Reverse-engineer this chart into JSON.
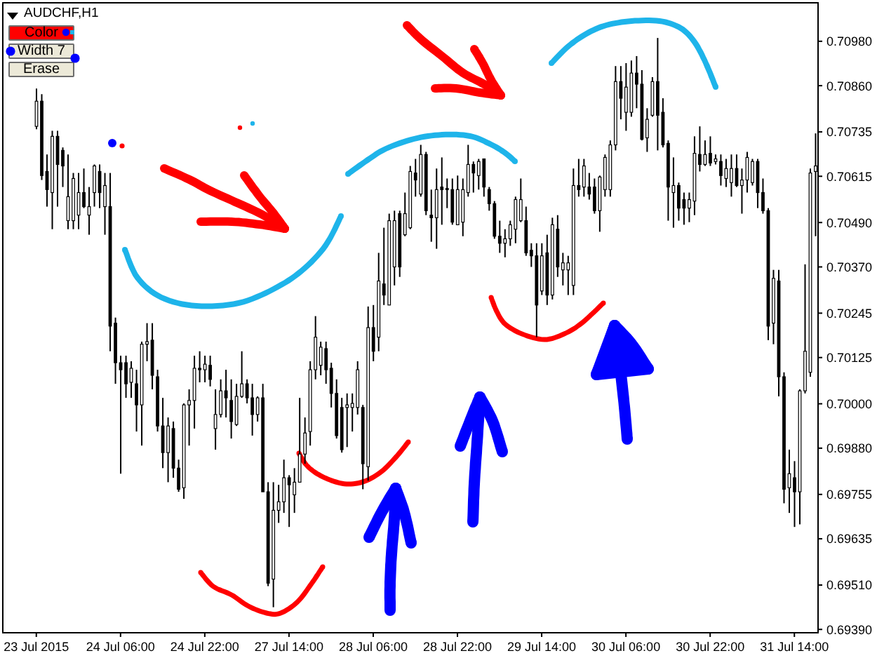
{
  "chart_data": {
    "type": "candlestick",
    "title": "AUDCHF,H1",
    "annotations": [
      "Color",
      "Width 7",
      "Erase"
    ],
    "color": "#000000",
    "categories": [
      "23 Jul 2015",
      null,
      null,
      null,
      null,
      null,
      null,
      null,
      null,
      null,
      null,
      null,
      null,
      null,
      null,
      null,
      "24 Jul 06:00",
      null,
      null,
      null,
      null,
      null,
      null,
      null,
      null,
      null,
      null,
      null,
      null,
      null,
      null,
      null,
      "24 Jul 22:00",
      null,
      null,
      null,
      null,
      null,
      null,
      null,
      null,
      null,
      null,
      null,
      null,
      null,
      null,
      null,
      "27 Jul 14:00",
      null,
      null,
      null,
      null,
      null,
      null,
      null,
      null,
      null,
      null,
      null,
      null,
      null,
      null,
      null,
      "28 Jul 06:00",
      null,
      null,
      null,
      null,
      null,
      null,
      null,
      null,
      null,
      null,
      null,
      null,
      null,
      null,
      null,
      "28 Jul 22:00",
      null,
      null,
      null,
      null,
      null,
      null,
      null,
      null,
      null,
      null,
      null,
      null,
      null,
      null,
      null,
      "29 Jul 14:00",
      null,
      null,
      null,
      null,
      null,
      null,
      null,
      null,
      null,
      null,
      null,
      null,
      null,
      null,
      null,
      "30 Jul 06:00",
      null,
      null,
      null,
      null,
      null,
      null,
      null,
      null,
      null,
      null,
      null,
      null,
      null,
      null,
      null,
      "30 Jul 22:00",
      null,
      null,
      null,
      null,
      null,
      null,
      null,
      null,
      null,
      null,
      null,
      null,
      null,
      null,
      null,
      "31 Jul 14:00",
      null,
      null,
      null,
      null
    ],
    "ohlc": [
      [
        0.7075,
        0.70852,
        0.70742,
        0.70818
      ],
      [
        0.70818,
        0.70837,
        0.70605,
        0.70617
      ],
      [
        0.70628,
        0.70674,
        0.70533,
        0.70579
      ],
      [
        0.70571,
        0.70738,
        0.70472,
        0.70723
      ],
      [
        0.70723,
        0.70738,
        0.70533,
        0.70647
      ],
      [
        0.70685,
        0.70693,
        0.70586,
        0.70643
      ],
      [
        0.70495,
        0.70674,
        0.70472,
        0.7056
      ],
      [
        0.70495,
        0.70624,
        0.70472,
        0.70609
      ],
      [
        0.7051,
        0.70624,
        0.70472,
        0.70571
      ],
      [
        0.70571,
        0.70636,
        0.70529,
        0.70533
      ],
      [
        0.7051,
        0.70586,
        0.70457,
        0.70533
      ],
      [
        0.70571,
        0.70647,
        0.70533,
        0.70643
      ],
      [
        0.70628,
        0.70647,
        0.70529,
        0.70571
      ],
      [
        0.70533,
        0.70624,
        0.70457,
        0.7059
      ],
      [
        0.70533,
        0.70624,
        0.70142,
        0.7021
      ],
      [
        0.70218,
        0.70233,
        0.70054,
        0.70111
      ],
      [
        0.70111,
        0.7013,
        0.69811,
        0.70092
      ],
      [
        0.70111,
        0.7013,
        0.70016,
        0.70054
      ],
      [
        0.70058,
        0.70115,
        0.70016,
        0.70096
      ],
      [
        0.70054,
        0.70092,
        0.69925,
        0.69997
      ],
      [
        0.69997,
        0.70168,
        0.69887,
        0.70161
      ],
      [
        0.70161,
        0.70218,
        0.70115,
        0.70168
      ],
      [
        0.70172,
        0.70218,
        0.70039,
        0.70077
      ],
      [
        0.70073,
        0.70092,
        0.69925,
        0.6994
      ],
      [
        0.6994,
        0.70016,
        0.69826,
        0.69868
      ],
      [
        0.69868,
        0.69963,
        0.69788,
        0.6994
      ],
      [
        0.69933,
        0.69952,
        0.698,
        0.69826
      ],
      [
        0.69826,
        0.69849,
        0.69762,
        0.69769
      ],
      [
        0.69773,
        0.70001,
        0.69743,
        0.69997
      ],
      [
        0.69997,
        0.70039,
        0.69887,
        0.70009
      ],
      [
        0.70009,
        0.7013,
        0.69933,
        0.70096
      ],
      [
        0.70096,
        0.70142,
        0.70058,
        0.70092
      ],
      [
        0.70092,
        0.7013,
        0.70058,
        0.70107
      ],
      [
        0.70104,
        0.7013,
        0.70047,
        0.70066
      ],
      [
        0.69933,
        0.70039,
        0.69876,
        0.69971
      ],
      [
        0.69971,
        0.70066,
        0.69963,
        0.70035
      ],
      [
        0.70035,
        0.70092,
        0.69963,
        0.70016
      ],
      [
        0.70009,
        0.70066,
        0.69906,
        0.69952
      ],
      [
        0.69944,
        0.70054,
        0.6994,
        0.7002
      ],
      [
        0.7002,
        0.70142,
        0.70016,
        0.70054
      ],
      [
        0.70054,
        0.70066,
        0.70001,
        0.70016
      ],
      [
        0.70016,
        0.70054,
        0.69914,
        0.69971
      ],
      [
        0.69971,
        0.7002,
        0.69952,
        0.70016
      ],
      [
        0.70016,
        0.70054,
        0.69762,
        0.69762
      ],
      [
        0.69762,
        0.69788,
        0.69507,
        0.69515
      ],
      [
        0.69526,
        0.69788,
        0.6945,
        0.69712
      ],
      [
        0.69712,
        0.69781,
        0.69678,
        0.69735
      ],
      [
        0.69735,
        0.69849,
        0.69705,
        0.698
      ],
      [
        0.698,
        0.69807,
        0.69667,
        0.69781
      ],
      [
        0.69754,
        0.69826,
        0.69705,
        0.69788
      ],
      [
        0.69788,
        0.70016,
        0.69788,
        0.69864
      ],
      [
        0.69864,
        0.69963,
        0.69838,
        0.69921
      ],
      [
        0.69925,
        0.70115,
        0.69887,
        0.70092
      ],
      [
        0.70092,
        0.70237,
        0.70066,
        0.7018
      ],
      [
        0.70104,
        0.70168,
        0.70077,
        0.70153
      ],
      [
        0.70149,
        0.70168,
        0.70054,
        0.70092
      ],
      [
        0.70096,
        0.70111,
        0.6999,
        0.70028
      ],
      [
        0.70028,
        0.70066,
        0.69906,
        0.69914
      ],
      [
        0.6999,
        0.70016,
        0.69868,
        0.69876
      ],
      [
        0.6999,
        0.70028,
        0.69883,
        0.69997
      ],
      [
        0.6999,
        0.70028,
        0.69925,
        0.70001
      ],
      [
        0.6999,
        0.70115,
        0.69971,
        0.70092
      ],
      [
        0.6999,
        0.69997,
        0.69769,
        0.69838
      ],
      [
        0.6983,
        0.70263,
        0.69792,
        0.70206
      ],
      [
        0.70206,
        0.70267,
        0.70115,
        0.70142
      ],
      [
        0.7018,
        0.70408,
        0.70142,
        0.70332
      ],
      [
        0.70324,
        0.70476,
        0.70267,
        0.70294
      ],
      [
        0.70267,
        0.70514,
        0.70267,
        0.70495
      ],
      [
        0.7037,
        0.70522,
        0.7032,
        0.70495
      ],
      [
        0.70514,
        0.70522,
        0.70343,
        0.7037
      ],
      [
        0.70457,
        0.70571,
        0.70453,
        0.70514
      ],
      [
        0.70476,
        0.70643,
        0.70472,
        0.70628
      ],
      [
        0.70624,
        0.70662,
        0.7056,
        0.70605
      ],
      [
        0.70567,
        0.707,
        0.7056,
        0.70674
      ],
      [
        0.70674,
        0.70681,
        0.7051,
        0.70522
      ],
      [
        0.7051,
        0.70579,
        0.70438,
        0.70503
      ],
      [
        0.70503,
        0.70636,
        0.70419,
        0.70579
      ],
      [
        0.70586,
        0.70666,
        0.70484,
        0.70579
      ],
      [
        0.70582,
        0.70609,
        0.70529,
        0.70579
      ],
      [
        0.70579,
        0.70609,
        0.70484,
        0.70491
      ],
      [
        0.70484,
        0.70617,
        0.70484,
        0.70579
      ],
      [
        0.70491,
        0.70609,
        0.70453,
        0.70579
      ],
      [
        0.70571,
        0.707,
        0.7056,
        0.70647
      ],
      [
        0.70647,
        0.70655,
        0.70571,
        0.70624
      ],
      [
        0.70617,
        0.70662,
        0.70579,
        0.70655
      ],
      [
        0.70662,
        0.70662,
        0.7056,
        0.70586
      ],
      [
        0.70579,
        0.70586,
        0.70522,
        0.70541
      ],
      [
        0.70541,
        0.70548,
        0.70446,
        0.70453
      ],
      [
        0.70453,
        0.70495,
        0.70408,
        0.70434
      ],
      [
        0.70434,
        0.70472,
        0.70396,
        0.70446
      ],
      [
        0.70446,
        0.70495,
        0.70427,
        0.70484
      ],
      [
        0.70472,
        0.7056,
        0.70434,
        0.70552
      ],
      [
        0.70495,
        0.70609,
        0.70491,
        0.70552
      ],
      [
        0.70495,
        0.70533,
        0.704,
        0.70408
      ],
      [
        0.70415,
        0.70434,
        0.7037,
        0.704
      ],
      [
        0.704,
        0.70434,
        0.7018,
        0.70267
      ],
      [
        0.70305,
        0.70434,
        0.70294,
        0.704
      ],
      [
        0.70408,
        0.70457,
        0.70267,
        0.70294
      ],
      [
        0.70294,
        0.70503,
        0.70282,
        0.70484
      ],
      [
        0.70472,
        0.7051,
        0.70343,
        0.7037
      ],
      [
        0.70362,
        0.70408,
        0.7032,
        0.70381
      ],
      [
        0.70362,
        0.704,
        0.70294,
        0.70381
      ],
      [
        0.7032,
        0.70636,
        0.70294,
        0.7059
      ],
      [
        0.7059,
        0.70662,
        0.7056,
        0.70579
      ],
      [
        0.70586,
        0.70662,
        0.7056,
        0.70643
      ],
      [
        0.70586,
        0.70624,
        0.70552,
        0.70567
      ],
      [
        0.70586,
        0.70609,
        0.70514,
        0.70522
      ],
      [
        0.70522,
        0.70617,
        0.70465,
        0.70613
      ],
      [
        0.70579,
        0.70674,
        0.7056,
        0.70666
      ],
      [
        0.70579,
        0.70712,
        0.7056,
        0.707
      ],
      [
        0.707,
        0.70913,
        0.70685,
        0.70871
      ],
      [
        0.70871,
        0.70913,
        0.70769,
        0.70826
      ],
      [
        0.70788,
        0.70921,
        0.70738,
        0.70856
      ],
      [
        0.70788,
        0.70928,
        0.70776,
        0.70894
      ],
      [
        0.70894,
        0.7094,
        0.70799,
        0.70864
      ],
      [
        0.70864,
        0.70902,
        0.70712,
        0.70715
      ],
      [
        0.70719,
        0.70799,
        0.70681,
        0.70769
      ],
      [
        0.7078,
        0.70883,
        0.70776,
        0.70871
      ],
      [
        0.70871,
        0.70989,
        0.70685,
        0.7078
      ],
      [
        0.70788,
        0.70826,
        0.70693,
        0.707
      ],
      [
        0.70704,
        0.70712,
        0.70495,
        0.70586
      ],
      [
        0.70571,
        0.70666,
        0.70476,
        0.7059
      ],
      [
        0.7059,
        0.70598,
        0.70495,
        0.70529
      ],
      [
        0.70552,
        0.70571,
        0.70484,
        0.70529
      ],
      [
        0.70529,
        0.70571,
        0.70491,
        0.70552
      ],
      [
        0.70548,
        0.70723,
        0.7051,
        0.70677
      ],
      [
        0.70674,
        0.7075,
        0.70628,
        0.70647
      ],
      [
        0.70647,
        0.70712,
        0.70643,
        0.70674
      ],
      [
        0.70677,
        0.70723,
        0.70643,
        0.70651
      ],
      [
        0.70655,
        0.70674,
        0.70647,
        0.70662
      ],
      [
        0.70655,
        0.70674,
        0.7059,
        0.70617
      ],
      [
        0.70609,
        0.70662,
        0.70586,
        0.70636
      ],
      [
        0.70598,
        0.70674,
        0.7056,
        0.70636
      ],
      [
        0.70636,
        0.70674,
        0.70586,
        0.7059
      ],
      [
        0.7059,
        0.70636,
        0.70514,
        0.70605
      ],
      [
        0.70605,
        0.70681,
        0.70571,
        0.70666
      ],
      [
        0.70598,
        0.70662,
        0.7059,
        0.70655
      ],
      [
        0.70655,
        0.70662,
        0.70529,
        0.70571
      ],
      [
        0.70571,
        0.70609,
        0.70514,
        0.70522
      ],
      [
        0.70522,
        0.70529,
        0.70172,
        0.7021
      ],
      [
        0.70218,
        0.70362,
        0.70161,
        0.70339
      ],
      [
        0.70332,
        0.70362,
        0.7002,
        0.70073
      ],
      [
        0.70073,
        0.70085,
        0.69731,
        0.69769
      ],
      [
        0.69773,
        0.69876,
        0.69705,
        0.69811
      ],
      [
        0.698,
        0.69845,
        0.69667,
        0.69762
      ],
      [
        0.69762,
        0.70039,
        0.69674,
        0.70035
      ],
      [
        0.70035,
        0.70377,
        0.70028,
        0.70142
      ],
      [
        0.70085,
        0.70636,
        0.70073,
        0.70624
      ],
      [
        0.70628,
        0.70731,
        0.70453,
        0.70643
      ]
    ],
    "ylim": [
      0.69381,
      0.71084
    ],
    "yticks": [
      {
        "value": 0.7098,
        "label": "0.70980"
      },
      {
        "value": 0.7086,
        "label": "0.70860"
      },
      {
        "value": 0.70735,
        "label": "0.70735"
      },
      {
        "value": 0.70615,
        "label": "0.70615"
      },
      {
        "value": 0.7049,
        "label": "0.70490"
      },
      {
        "value": 0.7037,
        "label": "0.70370"
      },
      {
        "value": 0.70245,
        "label": "0.70245"
      },
      {
        "value": 0.70125,
        "label": "0.70125"
      },
      {
        "value": 0.7,
        "label": "0.70000"
      },
      {
        "value": 0.6988,
        "label": "0.69880"
      },
      {
        "value": 0.69755,
        "label": "0.69755"
      },
      {
        "value": 0.69635,
        "label": "0.69635"
      },
      {
        "value": 0.6951,
        "label": "0.69510"
      },
      {
        "value": 0.6939,
        "label": "0.69390"
      }
    ]
  }
}
